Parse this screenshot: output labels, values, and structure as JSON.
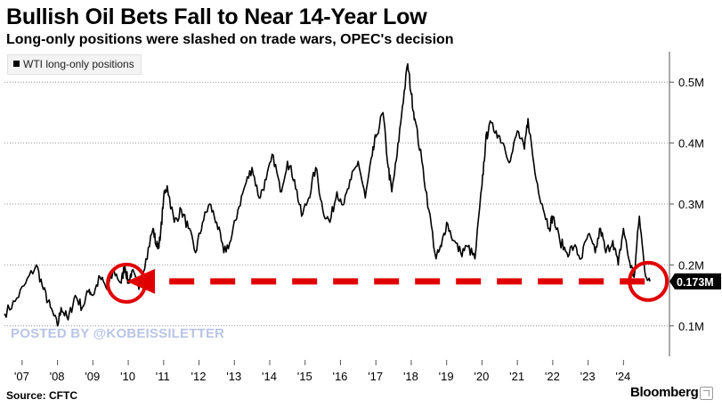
{
  "header": {
    "title": "Bullish Oil Bets Fall to Near 14-Year Low",
    "subtitle": "Long-only positions were slashed on trade wars, OPEC's decision"
  },
  "watermark": "POSTED BY @KOBEISSILETTER",
  "footer": {
    "source": "Source: CFTC",
    "brand": "Bloomberg"
  },
  "colors": {
    "line": "#000000",
    "annotation": "#e10000",
    "grid": "#9a9a9a",
    "watermark": "#b9c5e6",
    "callout_bg": "#000000",
    "callout_text": "#ffffff"
  },
  "icons": {
    "brand_badge": "expand-arrow-icon"
  },
  "chart_data": {
    "type": "line",
    "title": "Bullish Oil Bets Fall to Near 14-Year Low",
    "subtitle": "Long-only positions were slashed on trade wars, OPEC's decision",
    "xlabel": "",
    "ylabel": "",
    "xlim": [
      2006.5,
      2025.3
    ],
    "ylim": [
      0.05,
      0.55
    ],
    "x_ticks": [
      {
        "value": 2007,
        "label": "'07"
      },
      {
        "value": 2008,
        "label": "'08"
      },
      {
        "value": 2009,
        "label": "'09"
      },
      {
        "value": 2010,
        "label": "'10"
      },
      {
        "value": 2011,
        "label": "'11"
      },
      {
        "value": 2012,
        "label": "'12"
      },
      {
        "value": 2013,
        "label": "'13"
      },
      {
        "value": 2014,
        "label": "'14"
      },
      {
        "value": 2015,
        "label": "'15"
      },
      {
        "value": 2016,
        "label": "'16"
      },
      {
        "value": 2017,
        "label": "'17"
      },
      {
        "value": 2018,
        "label": "'18"
      },
      {
        "value": 2019,
        "label": "'19"
      },
      {
        "value": 2020,
        "label": "'20"
      },
      {
        "value": 2021,
        "label": "'21"
      },
      {
        "value": 2022,
        "label": "'22"
      },
      {
        "value": 2023,
        "label": "'23"
      },
      {
        "value": 2024,
        "label": "'24"
      }
    ],
    "y_ticks": [
      {
        "value": 0.1,
        "label": "0.1M"
      },
      {
        "value": 0.2,
        "label": "0.2M"
      },
      {
        "value": 0.3,
        "label": "0.3M"
      },
      {
        "value": 0.4,
        "label": "0.4M"
      },
      {
        "value": 0.5,
        "label": "0.5M"
      }
    ],
    "grid": true,
    "legend": {
      "position": "top-left",
      "entries": [
        "WTI long-only positions"
      ]
    },
    "series": [
      {
        "name": "WTI long-only positions",
        "color": "#000000",
        "x": [
          2006.5,
          2006.8,
          2007.1,
          2007.4,
          2007.6,
          2007.8,
          2008.0,
          2008.1,
          2008.3,
          2008.5,
          2008.7,
          2008.9,
          2009.0,
          2009.2,
          2009.4,
          2009.6,
          2009.8,
          2009.9,
          2010.0,
          2010.1,
          2010.3,
          2010.5,
          2010.7,
          2010.8,
          2010.9,
          2011.0,
          2011.1,
          2011.3,
          2011.5,
          2011.7,
          2011.9,
          2012.1,
          2012.3,
          2012.5,
          2012.7,
          2012.9,
          2013.1,
          2013.3,
          2013.5,
          2013.7,
          2013.9,
          2014.1,
          2014.3,
          2014.5,
          2014.7,
          2014.9,
          2015.1,
          2015.3,
          2015.5,
          2015.7,
          2015.9,
          2016.1,
          2016.3,
          2016.5,
          2016.7,
          2016.9,
          2017.0,
          2017.2,
          2017.35,
          2017.45,
          2017.6,
          2017.75,
          2017.9,
          2018.0,
          2018.1,
          2018.3,
          2018.5,
          2018.7,
          2018.85,
          2019.0,
          2019.2,
          2019.4,
          2019.6,
          2019.8,
          2020.0,
          2020.1,
          2020.2,
          2020.4,
          2020.6,
          2020.8,
          2021.0,
          2021.2,
          2021.3,
          2021.5,
          2021.7,
          2021.9,
          2022.0,
          2022.2,
          2022.4,
          2022.6,
          2022.8,
          2023.0,
          2023.2,
          2023.35,
          2023.5,
          2023.7,
          2023.85,
          2024.0,
          2024.15,
          2024.3,
          2024.45,
          2024.6,
          2024.75
        ],
        "values": [
          0.12,
          0.14,
          0.17,
          0.2,
          0.16,
          0.13,
          0.1,
          0.13,
          0.11,
          0.15,
          0.13,
          0.16,
          0.15,
          0.18,
          0.16,
          0.19,
          0.17,
          0.2,
          0.17,
          0.19,
          0.16,
          0.21,
          0.26,
          0.23,
          0.24,
          0.31,
          0.33,
          0.27,
          0.29,
          0.26,
          0.22,
          0.27,
          0.3,
          0.27,
          0.22,
          0.24,
          0.29,
          0.33,
          0.36,
          0.31,
          0.34,
          0.38,
          0.32,
          0.37,
          0.34,
          0.28,
          0.31,
          0.36,
          0.29,
          0.27,
          0.32,
          0.3,
          0.34,
          0.37,
          0.31,
          0.38,
          0.41,
          0.45,
          0.36,
          0.32,
          0.38,
          0.46,
          0.53,
          0.48,
          0.44,
          0.37,
          0.29,
          0.21,
          0.23,
          0.27,
          0.24,
          0.22,
          0.23,
          0.21,
          0.33,
          0.4,
          0.43,
          0.42,
          0.4,
          0.37,
          0.42,
          0.39,
          0.44,
          0.35,
          0.3,
          0.26,
          0.28,
          0.24,
          0.22,
          0.23,
          0.21,
          0.25,
          0.22,
          0.26,
          0.22,
          0.24,
          0.2,
          0.26,
          0.21,
          0.18,
          0.28,
          0.19,
          0.173
        ]
      }
    ],
    "annotations": {
      "last_value": 0.173,
      "last_value_label": "0.173M",
      "arrow": {
        "type": "dashed-arrow",
        "from_x": 2024.6,
        "to_x": 2010.0,
        "y": 0.173,
        "color": "#e10000"
      },
      "circles": [
        {
          "x": 2009.95,
          "y": 0.17
        },
        {
          "x": 2024.7,
          "y": 0.173
        }
      ]
    }
  }
}
